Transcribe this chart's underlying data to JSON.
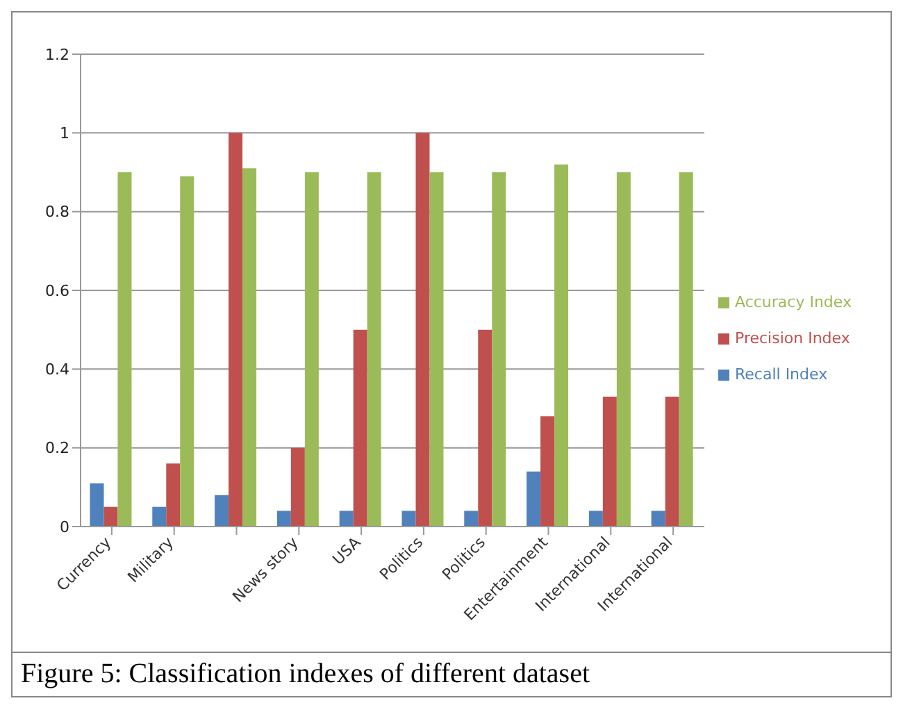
{
  "chart_data": {
    "type": "bar",
    "categories": [
      "Currency",
      "Military",
      null,
      "News story",
      "USA",
      "Politics",
      "Politics",
      "Entertainment",
      "International",
      "International"
    ],
    "series": [
      {
        "name": "Recall Index",
        "color": "#4f81bd",
        "values": [
          0.11,
          0.05,
          0.08,
          0.04,
          0.04,
          0.04,
          0.04,
          0.14,
          0.04,
          0.04
        ]
      },
      {
        "name": "Precision Index",
        "color": "#c0504d",
        "values": [
          0.05,
          0.16,
          1,
          0.2,
          0.5,
          1,
          0.5,
          0.28,
          0.33,
          0.33
        ]
      },
      {
        "name": "Accuracy Index",
        "color": "#9bbb59",
        "values": [
          0.9,
          0.89,
          0.91,
          0.9,
          0.9,
          0.9,
          0.9,
          0.92,
          0.9,
          0.9
        ]
      }
    ],
    "ylim": [
      0,
      1.2
    ],
    "yticks": [
      0,
      0.2,
      0.4,
      0.6,
      0.8,
      1,
      1.2
    ],
    "grid": "y",
    "legend": "right",
    "annotations": [
      "Figure 5: Classification indexes of different dataset"
    ]
  }
}
